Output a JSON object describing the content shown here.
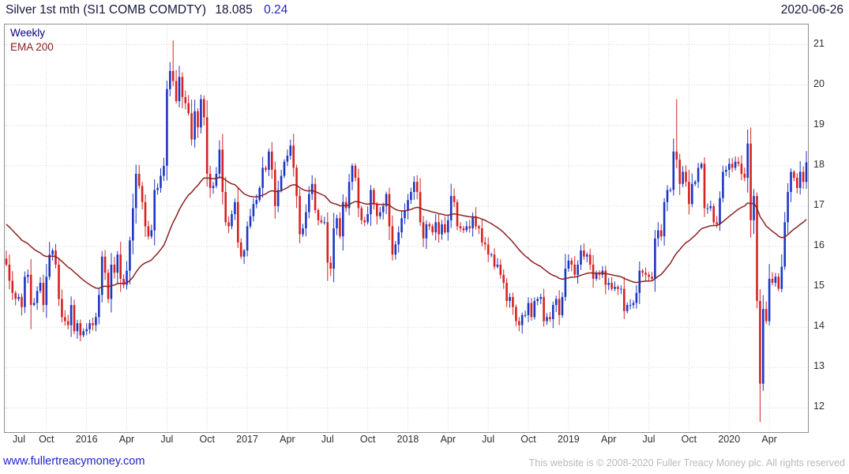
{
  "header": {
    "instrument": "Silver 1st mth (SI1 COMB COMDTY)",
    "last_price": "18.085",
    "change": "0.24",
    "date": "2020-06-26"
  },
  "legend": {
    "timeframe": "Weekly",
    "overlay": "EMA 200"
  },
  "footer": {
    "link": "www.fullertreacymoney.com",
    "copyright": "This website is © 2008-2020 Fuller Treacy Money plc. All rights reserved"
  },
  "chart_data": {
    "type": "candlestick",
    "title": "Silver 1st mth (SI1 COMB COMDTY)",
    "timeframe": "weekly",
    "ylim": [
      11.4,
      21.5
    ],
    "yticks": [
      12,
      13,
      14,
      15,
      16,
      17,
      18,
      19,
      20,
      21
    ],
    "x_tick_labels": [
      "Jul",
      "Oct",
      "2016",
      "Apr",
      "Jul",
      "Oct",
      "2017",
      "Apr",
      "Jul",
      "Oct",
      "2018",
      "Apr",
      "Jul",
      "Oct",
      "2019",
      "Apr",
      "Jul",
      "Oct",
      "2020",
      "Apr"
    ],
    "x_tick_week_indices": [
      0,
      13,
      26,
      39,
      52,
      65,
      78,
      91,
      104,
      117,
      130,
      143,
      156,
      169,
      182,
      195,
      208,
      221,
      234,
      247
    ],
    "first_open": 15.7,
    "weekly_closes": [
      15.55,
      15.15,
      14.85,
      14.7,
      14.75,
      14.5,
      15.25,
      15.3,
      14.55,
      14.6,
      14.9,
      15.1,
      14.55,
      15.25,
      15.8,
      15.9,
      15.55,
      14.7,
      14.25,
      14.15,
      14.05,
      14.55,
      13.9,
      14.1,
      13.8,
      13.9,
      13.95,
      14.1,
      14.05,
      14.25,
      14.8,
      15.75,
      15.35,
      14.7,
      15.55,
      15.35,
      15.8,
      15.2,
      15.05,
      15.4,
      16.15,
      16.95,
      17.8,
      17.5,
      17.1,
      16.5,
      16.25,
      16.4,
      17.4,
      17.45,
      17.75,
      18.0,
      19.9,
      20.35,
      20.1,
      19.6,
      20.2,
      19.7,
      19.55,
      19.3,
      18.65,
      19.35,
      18.95,
      19.65,
      19.2,
      17.8,
      17.45,
      17.5,
      17.8,
      18.4,
      17.35,
      16.6,
      16.5,
      16.8,
      17.1,
      16.1,
      15.75,
      15.9,
      16.5,
      16.75,
      17.05,
      17.15,
      17.45,
      17.95,
      17.9,
      18.35,
      17.9,
      17.0,
      17.4,
      17.75,
      18.1,
      18.25,
      18.5,
      17.95,
      17.25,
      16.3,
      16.45,
      16.85,
      17.3,
      17.55,
      16.9,
      16.65,
      16.6,
      16.6,
      15.6,
      15.45,
      16.45,
      16.7,
      16.25,
      17.1,
      16.95,
      17.6,
      18.0,
      17.7,
      16.95,
      16.65,
      16.6,
      16.8,
      17.4,
      17.05,
      16.75,
      16.85,
      17.0,
      17.3,
      16.5,
      15.8,
      16.05,
      16.35,
      16.7,
      16.9,
      17.15,
      17.35,
      17.6,
      17.35,
      16.6,
      16.2,
      16.55,
      16.5,
      16.35,
      16.6,
      16.3,
      16.55,
      16.35,
      16.65,
      17.25,
      17.1,
      16.5,
      16.45,
      16.4,
      16.5,
      16.45,
      16.75,
      16.5,
      16.45,
      16.1,
      16.05,
      15.8,
      15.8,
      15.5,
      15.55,
      15.3,
      15.1,
      14.65,
      14.75,
      14.5,
      14.15,
      14.05,
      14.3,
      14.3,
      14.6,
      14.25,
      14.65,
      14.7,
      14.75,
      14.15,
      14.25,
      14.2,
      14.55,
      14.7,
      14.3,
      14.75,
      15.45,
      15.65,
      15.55,
      15.3,
      15.55,
      15.9,
      15.75,
      15.8,
      15.55,
      15.2,
      15.35,
      15.3,
      15.4,
      15.05,
      15.1,
      14.95,
      15.0,
      14.95,
      14.95,
      14.4,
      14.55,
      14.55,
      14.6,
      14.85,
      15.4,
      15.35,
      15.3,
      15.25,
      15.2,
      16.2,
      16.4,
      16.25,
      17.1,
      17.4,
      17.4,
      18.35,
      18.15,
      17.55,
      17.85,
      17.6,
      17.05,
      17.55,
      17.6,
      17.95,
      18.05,
      16.95,
      16.95,
      17.0,
      16.6,
      16.55,
      17.2,
      17.85,
      17.9,
      18.05,
      17.95,
      18.1,
      18.05,
      17.8,
      17.7,
      18.55,
      16.65,
      17.25,
      14.65,
      12.6,
      14.45,
      14.15,
      15.2,
      15.1,
      15.25,
      14.95,
      15.5,
      16.6,
      17.35,
      17.85,
      17.7,
      17.45,
      17.85,
      17.6,
      18.085
    ],
    "key_extremes": {
      "8": {
        "low": 13.95
      },
      "24": {
        "low": 13.65
      },
      "54": {
        "high": 21.1
      },
      "92": {
        "high": 18.65
      },
      "104": {
        "low": 15.15
      },
      "166": {
        "low": 13.9
      },
      "217": {
        "high": 19.65
      },
      "240": {
        "high": 18.9
      },
      "244": {
        "low": 11.65
      }
    },
    "ema": {
      "label": "EMA 200",
      "span_weeks": 40,
      "seed": 16.6,
      "color": "#8b2222"
    },
    "colors": {
      "up": "#1c36c4",
      "down": "#d62222",
      "grid": "#d6d6d6",
      "border": "#8f8f8f"
    }
  }
}
